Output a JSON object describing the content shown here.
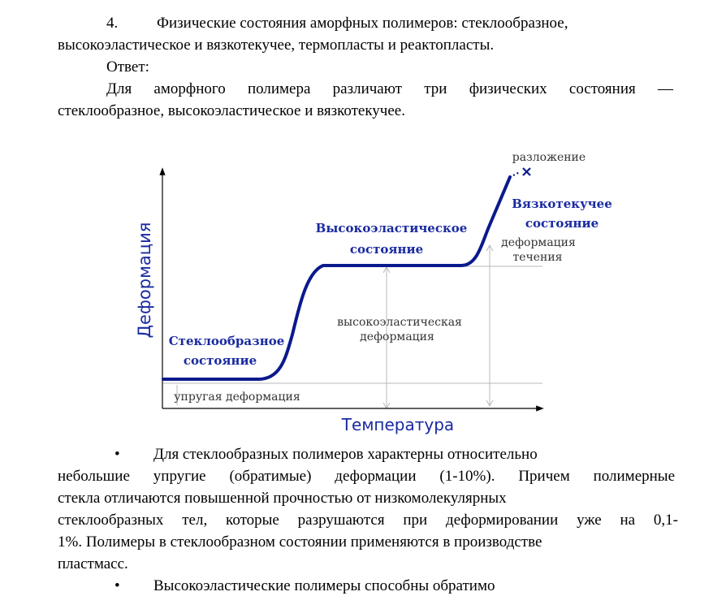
{
  "question": {
    "number": "4.",
    "line1": "Физические состояния аморфных полимеров: стеклообразное,",
    "line2": "высокоэластическое и вязкотекучее, термопласты и реактопласты."
  },
  "answer_label": "Ответ:",
  "answer": {
    "line1": "Для аморфного полимера различают три физических состояния —",
    "line2": "стеклообразное, высокоэластическое и вязкотекучее."
  },
  "diagram": {
    "y_axis_label": "Деформация",
    "x_axis_label": "Температура",
    "glassy_line1": "Стеклообразное",
    "glassy_line2": "состояние",
    "elastic_line1": "Высокоэластическое",
    "elastic_line2": "состояние",
    "viscous_line1": "Вязкотекучее",
    "viscous_line2": "состояние",
    "decomposition": "разложение",
    "elastic_deformation": "упругая деформация",
    "high_elastic_line1": "высокоэластическая",
    "high_elastic_line2": "деформация",
    "flow_line1": "деформация",
    "flow_line2": "течения",
    "colors": {
      "curve": "#0a1a8c",
      "state_labels": "#1a2aa0",
      "axis": "#000000",
      "guides": "#b8b8b8"
    }
  },
  "bullets": [
    {
      "marker": "•",
      "line1": "Для стеклообразных полимеров характерны относительно",
      "line2": "небольшие упругие (обратимые) деформации (1-10%). Причем полимерные",
      "line3": "стекла отличаются повышенной прочностью от низкомолекулярных",
      "line4": "стеклообразных тел, которые разрушаются при деформировании уже на 0,1-",
      "line5": "1%. Полимеры в стеклообразном состоянии применяются в производстве",
      "line6": "пластмасс."
    },
    {
      "marker": "•",
      "line1": "Высокоэластические полимеры способны обратимо"
    }
  ]
}
